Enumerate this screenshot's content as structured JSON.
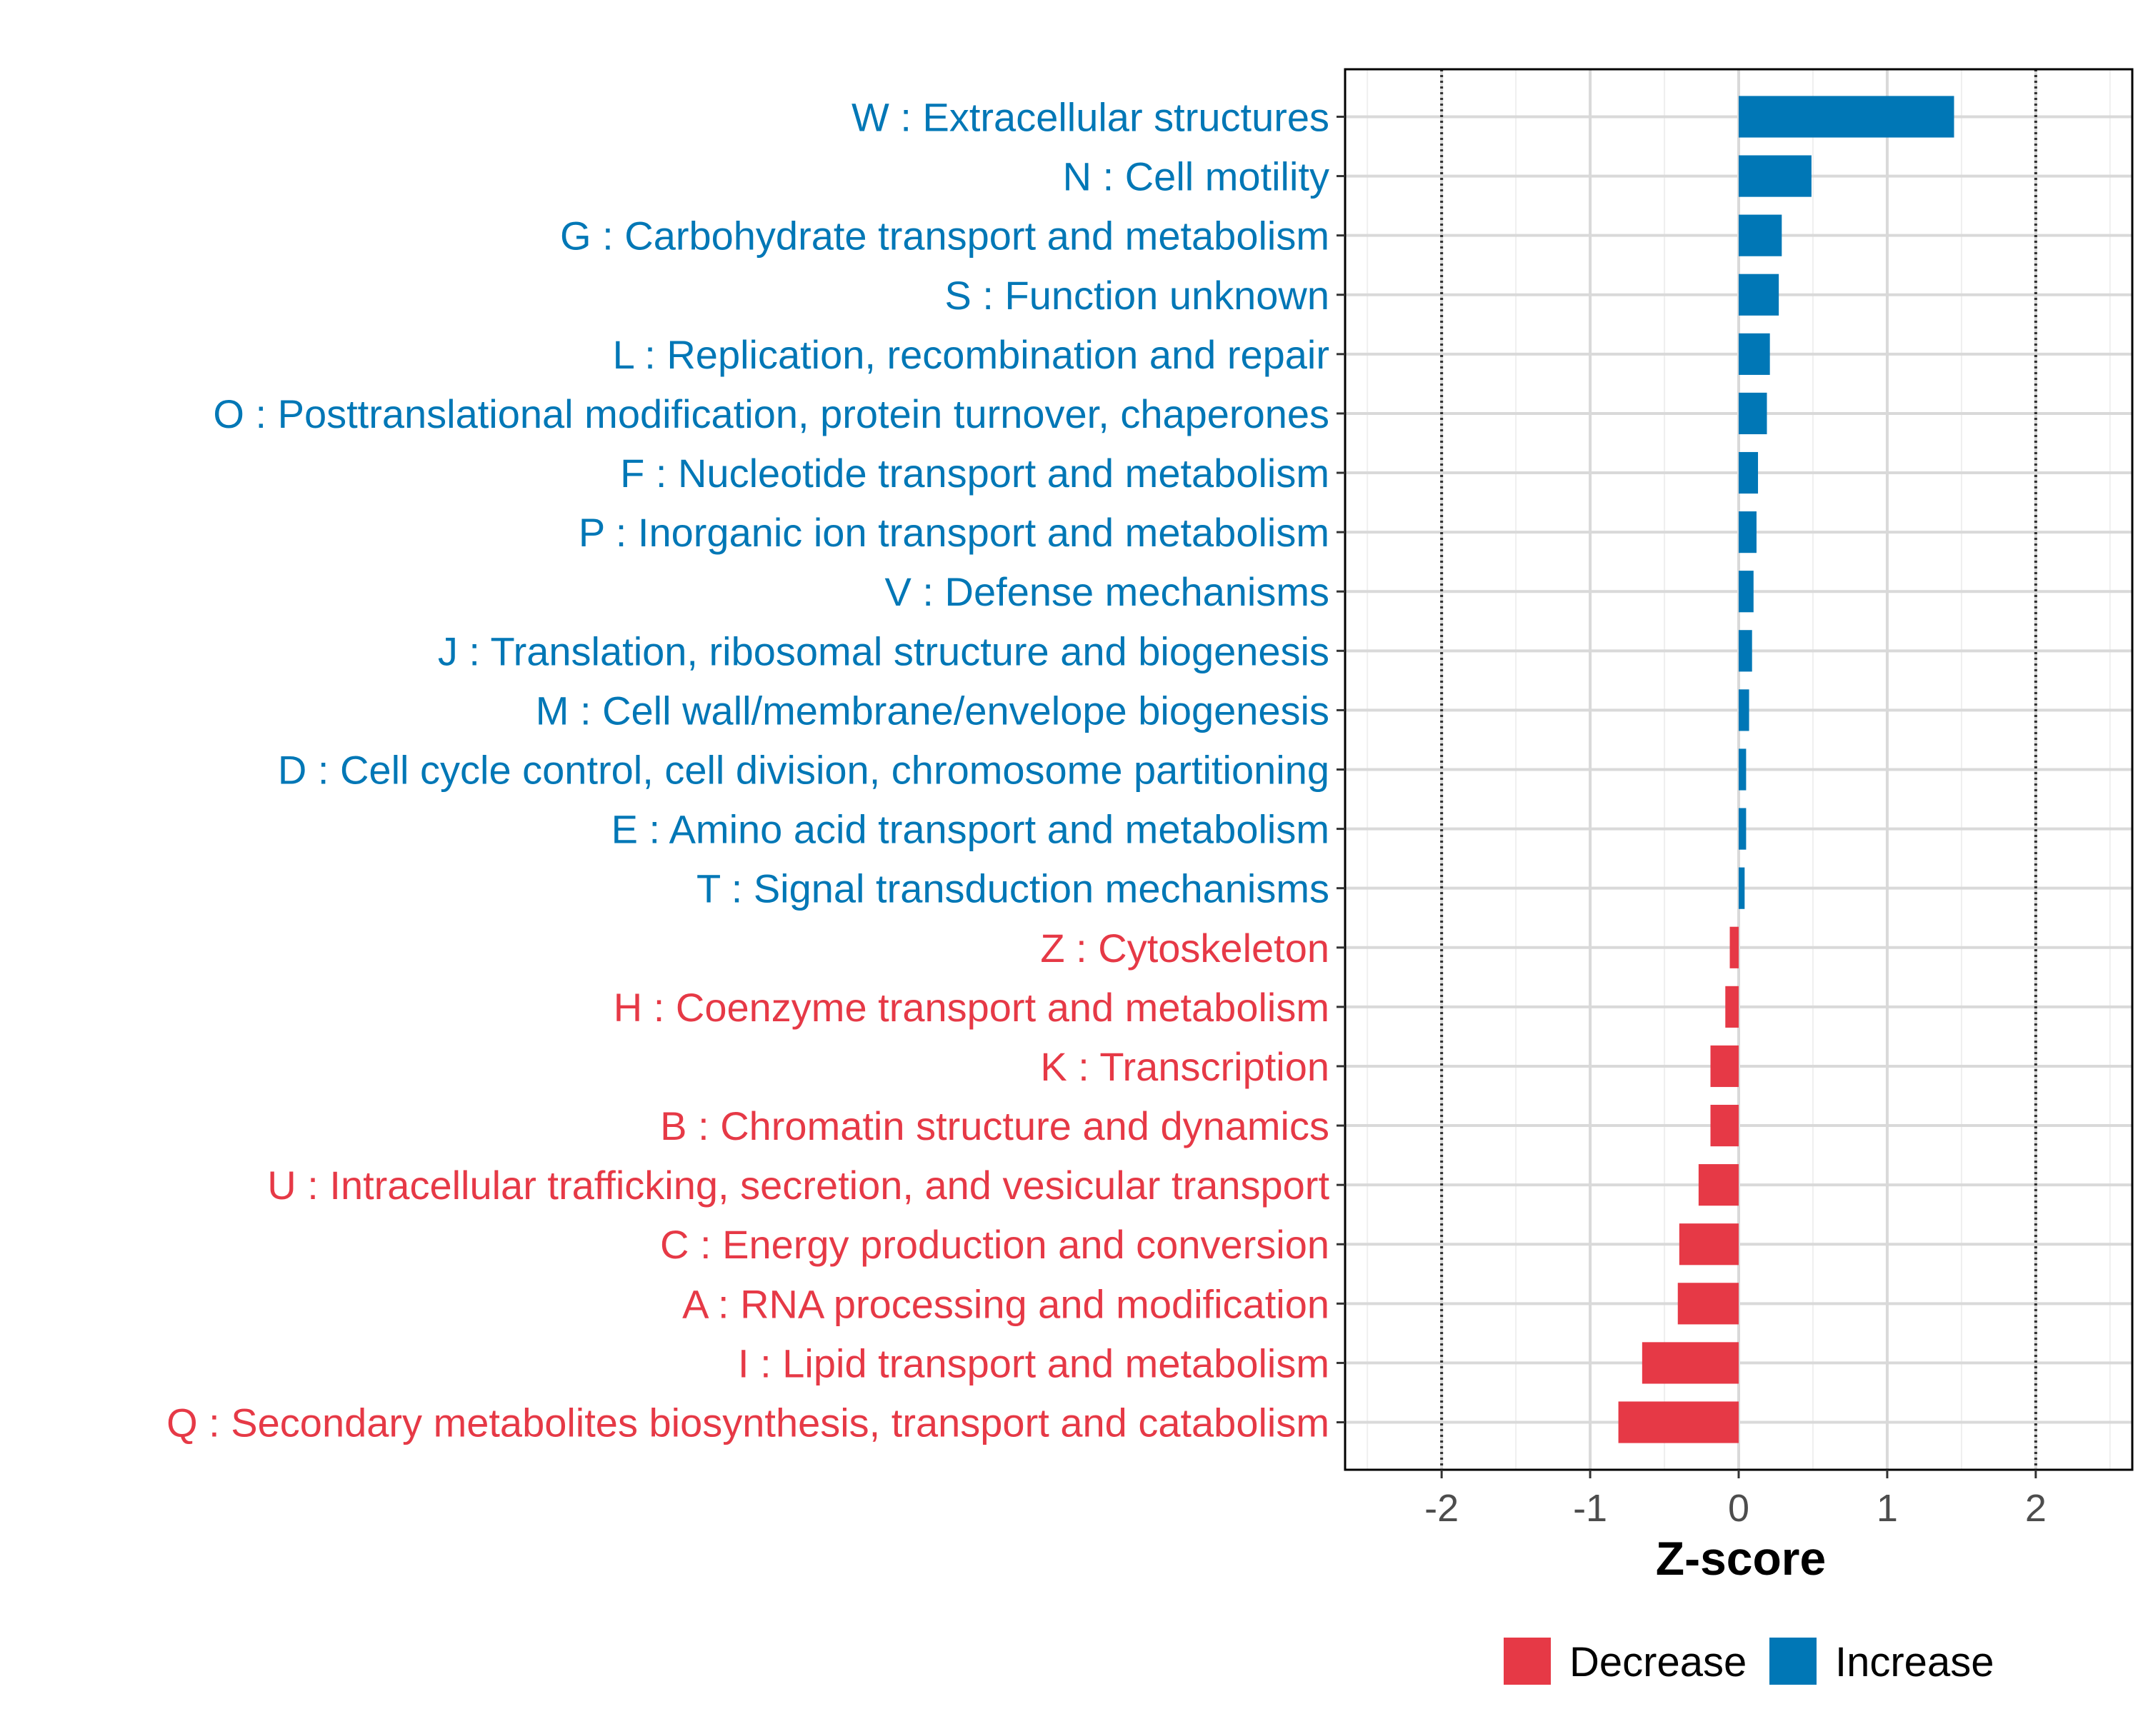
{
  "chart_data": {
    "type": "bar",
    "orientation": "horizontal",
    "xlabel": "Z-score",
    "xlim": [
      -2.65,
      2.65
    ],
    "xticks": [
      -2,
      -1,
      0,
      1,
      2
    ],
    "xtick_labels": [
      "-2",
      "-1",
      "0",
      "1",
      "2"
    ],
    "reference_lines": [
      -2,
      2
    ],
    "grid": true,
    "legend_position": "bottom",
    "colors": {
      "Decrease": "#E63946",
      "Increase": "#0077B6"
    },
    "legend": [
      {
        "label": "Decrease",
        "color": "#E63946"
      },
      {
        "label": "Increase",
        "color": "#0077B6"
      }
    ],
    "categories": [
      "W : Extracellular structures",
      "N : Cell motility",
      "G : Carbohydrate transport and metabolism",
      "S : Function unknown",
      "L : Replication, recombination and repair",
      "O : Posttranslational modification, protein turnover, chaperones",
      "F : Nucleotide transport and metabolism",
      "P : Inorganic ion transport and metabolism",
      "V : Defense mechanisms",
      "J : Translation, ribosomal structure and biogenesis",
      "M : Cell wall/membrane/envelope biogenesis",
      "D : Cell cycle control, cell division, chromosome partitioning",
      "E : Amino acid transport and metabolism",
      "T : Signal transduction mechanisms",
      "Z : Cytoskeleton",
      "H : Coenzyme transport and metabolism",
      "K : Transcription",
      "B : Chromatin structure and dynamics",
      "U : Intracellular trafficking, secretion, and vesicular transport",
      "C : Energy production and conversion",
      "A : RNA processing and modification",
      "I : Lipid transport and metabolism",
      "Q : Secondary metabolites biosynthesis, transport and catabolism"
    ],
    "values": [
      1.45,
      0.49,
      0.29,
      0.27,
      0.21,
      0.19,
      0.13,
      0.12,
      0.1,
      0.09,
      0.07,
      0.05,
      0.05,
      0.04,
      -0.06,
      -0.09,
      -0.19,
      -0.19,
      -0.27,
      -0.4,
      -0.41,
      -0.65,
      -0.81
    ],
    "groups": [
      "Increase",
      "Increase",
      "Increase",
      "Increase",
      "Increase",
      "Increase",
      "Increase",
      "Increase",
      "Increase",
      "Increase",
      "Increase",
      "Increase",
      "Increase",
      "Increase",
      "Decrease",
      "Decrease",
      "Decrease",
      "Decrease",
      "Decrease",
      "Decrease",
      "Decrease",
      "Decrease",
      "Decrease"
    ]
  }
}
